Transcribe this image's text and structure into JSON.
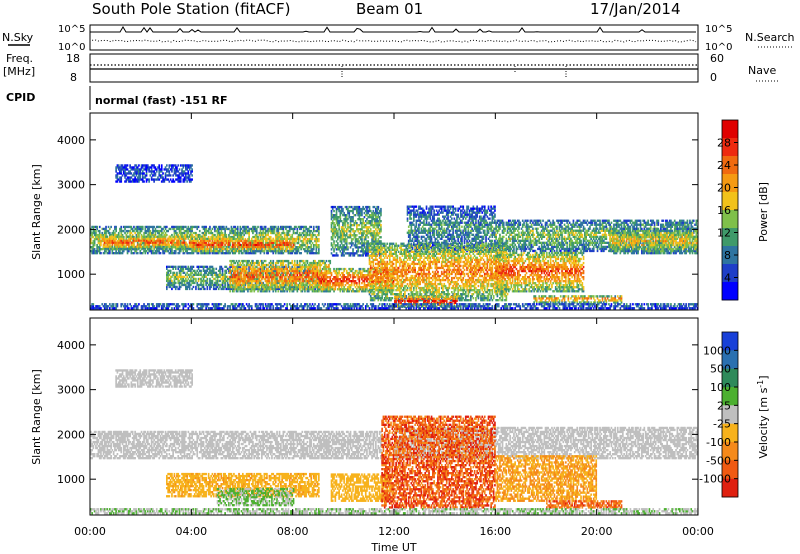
{
  "header": {
    "station": "South Pole Station (fitACF)",
    "beam": "Beam 01",
    "date": "17/Jan/2014"
  },
  "top_panels": {
    "nsky_label": "N.Sky",
    "nsearch_label": "N.Search",
    "noise_ticks": [
      "10^5",
      "10^0"
    ],
    "freq_label_1": "Freq.",
    "freq_label_2": "[MHz]",
    "freq_ticks": [
      "18",
      "8"
    ],
    "nave_label": "Nave",
    "nave_ticks": [
      "60",
      "0"
    ],
    "cpid_label": "CPID",
    "cpid_text": "normal (fast) -151 RF"
  },
  "colors": {
    "power_scale": [
      "#0000ff",
      "#1e3ec8",
      "#2e74a0",
      "#3f9a6a",
      "#7fc04a",
      "#f2c21a",
      "#f59a12",
      "#f06a10",
      "#ee2a10",
      "#e00000"
    ],
    "velocity_scale": [
      "#1840d8",
      "#2a70b0",
      "#2e8a5a",
      "#4cb030",
      "#bfbfbf",
      "#f7b21c",
      "#f58a1a",
      "#f05a12",
      "#e02010"
    ],
    "ground_scatter": "#bfbfbf"
  },
  "chart_data": [
    {
      "type": "heatmap",
      "panel": "power",
      "xlabel": "",
      "ylabel": "Slant Range [km]",
      "x_ticks": [
        "00:00",
        "04:00",
        "08:00",
        "12:00",
        "16:00",
        "20:00",
        "00:00"
      ],
      "y_ticks": [
        "1000",
        "2000",
        "3000",
        "4000"
      ],
      "xlim": [
        0,
        24
      ],
      "ylim": [
        200,
        4600
      ],
      "colorbar": {
        "label": "Power [dB]",
        "ticks": [
          "28",
          "24",
          "20",
          "16",
          "12",
          "8",
          "4"
        ],
        "range": [
          0,
          30
        ]
      },
      "bands": [
        {
          "t": [
            0.0,
            9.0
          ],
          "r": [
            1450,
            2050
          ],
          "v": 16
        },
        {
          "t": [
            0.5,
            4.5
          ],
          "r": [
            1550,
            1850
          ],
          "v": 24
        },
        {
          "t": [
            4.0,
            8.0
          ],
          "r": [
            1500,
            1800
          ],
          "v": 26
        },
        {
          "t": [
            9.5,
            11.5
          ],
          "r": [
            1400,
            2500
          ],
          "v": 14
        },
        {
          "t": [
            12.5,
            16.0
          ],
          "r": [
            1500,
            2500
          ],
          "v": 10
        },
        {
          "t": [
            16.0,
            24.0
          ],
          "r": [
            1500,
            2200
          ],
          "v": 14
        },
        {
          "t": [
            20.5,
            24.0
          ],
          "r": [
            1450,
            2000
          ],
          "v": 18
        },
        {
          "t": [
            1.0,
            4.0
          ],
          "r": [
            3050,
            3450
          ],
          "v": 6
        },
        {
          "t": [
            3.0,
            9.0
          ],
          "r": [
            650,
            1150
          ],
          "v": 14
        },
        {
          "t": [
            5.5,
            9.5
          ],
          "r": [
            600,
            1300
          ],
          "v": 24
        },
        {
          "t": [
            9.0,
            12.0
          ],
          "r": [
            600,
            1100
          ],
          "v": 26
        },
        {
          "t": [
            11.0,
            16.5
          ],
          "r": [
            400,
            1700
          ],
          "v": 22
        },
        {
          "t": [
            12.0,
            14.5
          ],
          "r": [
            250,
            500
          ],
          "v": 29
        },
        {
          "t": [
            16.0,
            19.5
          ],
          "r": [
            600,
            1500
          ],
          "v": 24
        },
        {
          "t": [
            17.5,
            21.0
          ],
          "r": [
            350,
            500
          ],
          "v": 22
        },
        {
          "t": [
            0.0,
            24.0
          ],
          "r": [
            220,
            350
          ],
          "v": 8
        }
      ]
    },
    {
      "type": "heatmap",
      "panel": "velocity",
      "xlabel": "Time UT",
      "ylabel": "Slant Range [km]",
      "x_ticks": [
        "00:00",
        "04:00",
        "08:00",
        "12:00",
        "16:00",
        "20:00",
        "00:00"
      ],
      "y_ticks": [
        "1000",
        "2000",
        "3000",
        "4000"
      ],
      "xlim": [
        0,
        24
      ],
      "ylim": [
        200,
        4600
      ],
      "colorbar": {
        "label": "Velocity [m s^-1]",
        "ticks": [
          "1000",
          "500",
          "100",
          "25",
          "-25",
          "-100",
          "-500",
          "-1000"
        ],
        "range": [
          -1200,
          1200
        ]
      },
      "bands": [
        {
          "t": [
            0.0,
            11.5
          ],
          "r": [
            1450,
            2050
          ],
          "v": 0
        },
        {
          "t": [
            12.0,
            24.0
          ],
          "r": [
            1450,
            2150
          ],
          "v": 0
        },
        {
          "t": [
            1.0,
            4.0
          ],
          "r": [
            3050,
            3450
          ],
          "v": 0
        },
        {
          "t": [
            3.0,
            9.0
          ],
          "r": [
            600,
            1100
          ],
          "v": -300
        },
        {
          "t": [
            5.0,
            8.0
          ],
          "r": [
            400,
            800
          ],
          "v": 150
        },
        {
          "t": [
            9.5,
            12.0
          ],
          "r": [
            500,
            1100
          ],
          "v": -250
        },
        {
          "t": [
            11.5,
            16.0
          ],
          "r": [
            350,
            2400
          ],
          "v": -800
        },
        {
          "t": [
            16.0,
            20.0
          ],
          "r": [
            500,
            1500
          ],
          "v": -400
        },
        {
          "t": [
            18.0,
            21.0
          ],
          "r": [
            350,
            500
          ],
          "v": -700
        },
        {
          "t": [
            0.0,
            24.0
          ],
          "r": [
            220,
            320
          ],
          "v": 120
        }
      ]
    }
  ]
}
